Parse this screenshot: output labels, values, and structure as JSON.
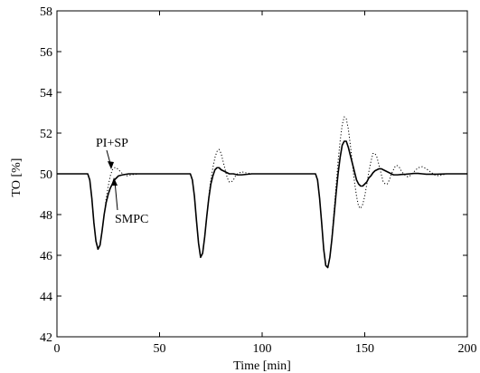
{
  "chart_data": {
    "type": "line",
    "title": "",
    "xlabel": "Time [min]",
    "ylabel": "TO [%]",
    "xlim": [
      0,
      200
    ],
    "ylim": [
      42,
      58
    ],
    "xticks": [
      0,
      50,
      100,
      150,
      200
    ],
    "yticks": [
      42,
      44,
      46,
      48,
      50,
      52,
      54,
      56,
      58
    ],
    "grid": false,
    "legend": "none",
    "annotations": [
      {
        "text": "PI+SP",
        "series": "PI+SP",
        "x": 26,
        "y": 50.2
      },
      {
        "text": "SMPC",
        "series": "SMPC",
        "x": 28,
        "y": 49.6
      }
    ],
    "series": [
      {
        "name": "SMPC",
        "style": "solid",
        "color": "#000000",
        "x": [
          0,
          15,
          16,
          17,
          18,
          19,
          20,
          21,
          22,
          23,
          24,
          25,
          26,
          27,
          28,
          29,
          30,
          32,
          35,
          40,
          45,
          50,
          55,
          60,
          65,
          66,
          67,
          68,
          69,
          70,
          71,
          72,
          73,
          74,
          75,
          76,
          77,
          78,
          79,
          80,
          82,
          84,
          86,
          88,
          90,
          95,
          100,
          110,
          120,
          126,
          127,
          128,
          129,
          130,
          131,
          132,
          133,
          134,
          135,
          136,
          137,
          138,
          139,
          140,
          141,
          142,
          143,
          144,
          145,
          146,
          147,
          148,
          149,
          150,
          151,
          152,
          153,
          154,
          155,
          156,
          157,
          158,
          159,
          160,
          161,
          162,
          163,
          164,
          165,
          166,
          168,
          170,
          172,
          174,
          176,
          178,
          180,
          185,
          190,
          195,
          200
        ],
        "values": [
          50,
          50,
          49.7,
          48.8,
          47.6,
          46.7,
          46.3,
          46.5,
          47.2,
          48.0,
          48.6,
          49.0,
          49.3,
          49.5,
          49.7,
          49.8,
          49.9,
          49.95,
          50,
          50,
          50,
          50,
          50,
          50,
          50,
          49.7,
          48.9,
          47.7,
          46.6,
          45.9,
          46.1,
          46.9,
          47.9,
          48.8,
          49.5,
          49.9,
          50.2,
          50.3,
          50.3,
          50.2,
          50.1,
          50.0,
          50.0,
          49.95,
          49.95,
          50,
          50,
          50,
          50,
          50,
          49.7,
          48.8,
          47.6,
          46.3,
          45.5,
          45.4,
          45.9,
          46.8,
          47.9,
          49.0,
          50.0,
          50.8,
          51.4,
          51.6,
          51.6,
          51.3,
          50.9,
          50.5,
          50.1,
          49.7,
          49.5,
          49.4,
          49.4,
          49.5,
          49.6,
          49.8,
          49.9,
          50.05,
          50.15,
          50.2,
          50.25,
          50.25,
          50.2,
          50.15,
          50.1,
          50.05,
          50.0,
          49.95,
          49.95,
          49.95,
          49.97,
          49.98,
          50.0,
          50.02,
          50.02,
          50.0,
          49.98,
          49.98,
          50.0,
          50.0,
          50.0
        ]
      },
      {
        "name": "PI+SP",
        "style": "dotted",
        "color": "#000000",
        "x": [
          0,
          15,
          16,
          17,
          18,
          19,
          20,
          21,
          22,
          23,
          24,
          25,
          26,
          27,
          28,
          29,
          30,
          31,
          32,
          34,
          36,
          40,
          45,
          50,
          55,
          60,
          65,
          66,
          67,
          68,
          69,
          70,
          71,
          72,
          73,
          74,
          75,
          76,
          77,
          78,
          79,
          80,
          81,
          82,
          83,
          84,
          85,
          86,
          87,
          88,
          90,
          92,
          95,
          100,
          110,
          120,
          126,
          127,
          128,
          129,
          130,
          131,
          132,
          133,
          134,
          135,
          136,
          137,
          138,
          139,
          140,
          141,
          142,
          143,
          144,
          145,
          146,
          147,
          148,
          149,
          150,
          151,
          152,
          153,
          154,
          155,
          156,
          157,
          158,
          159,
          160,
          161,
          162,
          163,
          164,
          165,
          166,
          167,
          168,
          169,
          170,
          171,
          172,
          174,
          176,
          178,
          180,
          182,
          184,
          186,
          188,
          190,
          195,
          200
        ],
        "values": [
          50,
          50,
          49.7,
          48.8,
          47.6,
          46.7,
          46.3,
          46.5,
          47.2,
          48.0,
          48.8,
          49.4,
          49.9,
          50.2,
          50.3,
          50.3,
          50.2,
          50.1,
          50.0,
          49.9,
          49.95,
          50,
          50,
          50,
          50,
          50,
          50,
          49.7,
          48.9,
          47.7,
          46.6,
          45.9,
          46.1,
          46.9,
          47.9,
          48.9,
          49.7,
          50.3,
          50.8,
          51.1,
          51.2,
          51.0,
          50.6,
          50.2,
          49.8,
          49.6,
          49.6,
          49.7,
          49.9,
          50.0,
          50.1,
          50.05,
          50.0,
          50,
          50,
          50,
          50,
          49.7,
          48.8,
          47.6,
          46.3,
          45.5,
          45.4,
          45.9,
          46.9,
          48.1,
          49.4,
          50.6,
          51.6,
          52.4,
          52.8,
          52.7,
          52.2,
          51.4,
          50.5,
          49.6,
          48.9,
          48.4,
          48.3,
          48.5,
          48.9,
          49.5,
          50.1,
          50.6,
          51.0,
          51.0,
          50.8,
          50.4,
          50.0,
          49.6,
          49.5,
          49.5,
          49.7,
          50.0,
          50.2,
          50.4,
          50.4,
          50.3,
          50.1,
          50.0,
          49.9,
          49.85,
          49.9,
          50.1,
          50.3,
          50.35,
          50.25,
          50.1,
          49.95,
          49.9,
          49.95,
          50.0,
          50.0,
          50.0
        ]
      }
    ]
  }
}
